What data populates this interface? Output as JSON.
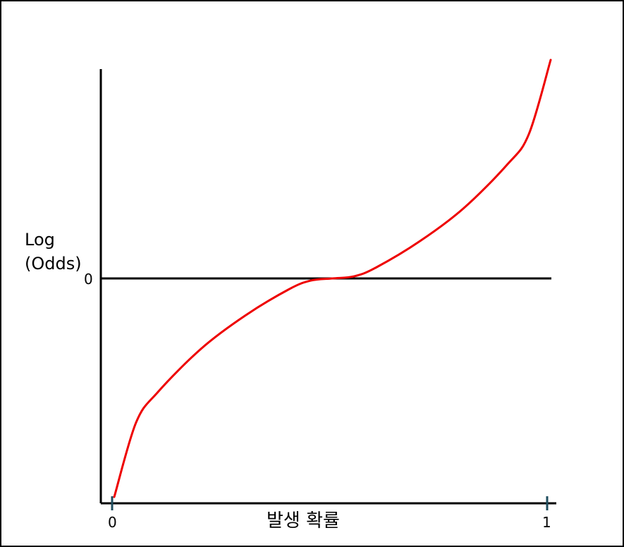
{
  "chart_data": {
    "type": "line",
    "title": "",
    "xlabel": "발생 확률",
    "ylabel": "Log\n(Odds)",
    "x_ticks": [
      "0",
      "1"
    ],
    "y_ticks": [
      "0"
    ],
    "xlim": [
      0,
      1
    ],
    "grid": false,
    "series": [
      {
        "color": "#ee0000",
        "x": [
          0,
          0.05,
          0.1,
          0.2,
          0.3,
          0.4,
          0.45,
          0.5,
          0.55,
          0.6,
          0.7,
          0.8,
          0.9,
          0.95,
          1
        ],
        "y_relative": [
          -1,
          -0.66,
          -0.52,
          -0.32,
          -0.17,
          -0.05,
          -0.01,
          0,
          0.01,
          0.05,
          0.17,
          0.32,
          0.52,
          0.66,
          1
        ]
      }
    ],
    "zero_line": true,
    "colors": {
      "axes": "#000000",
      "curve": "#ee0000",
      "tick_marks": "#1f4e5f"
    }
  }
}
